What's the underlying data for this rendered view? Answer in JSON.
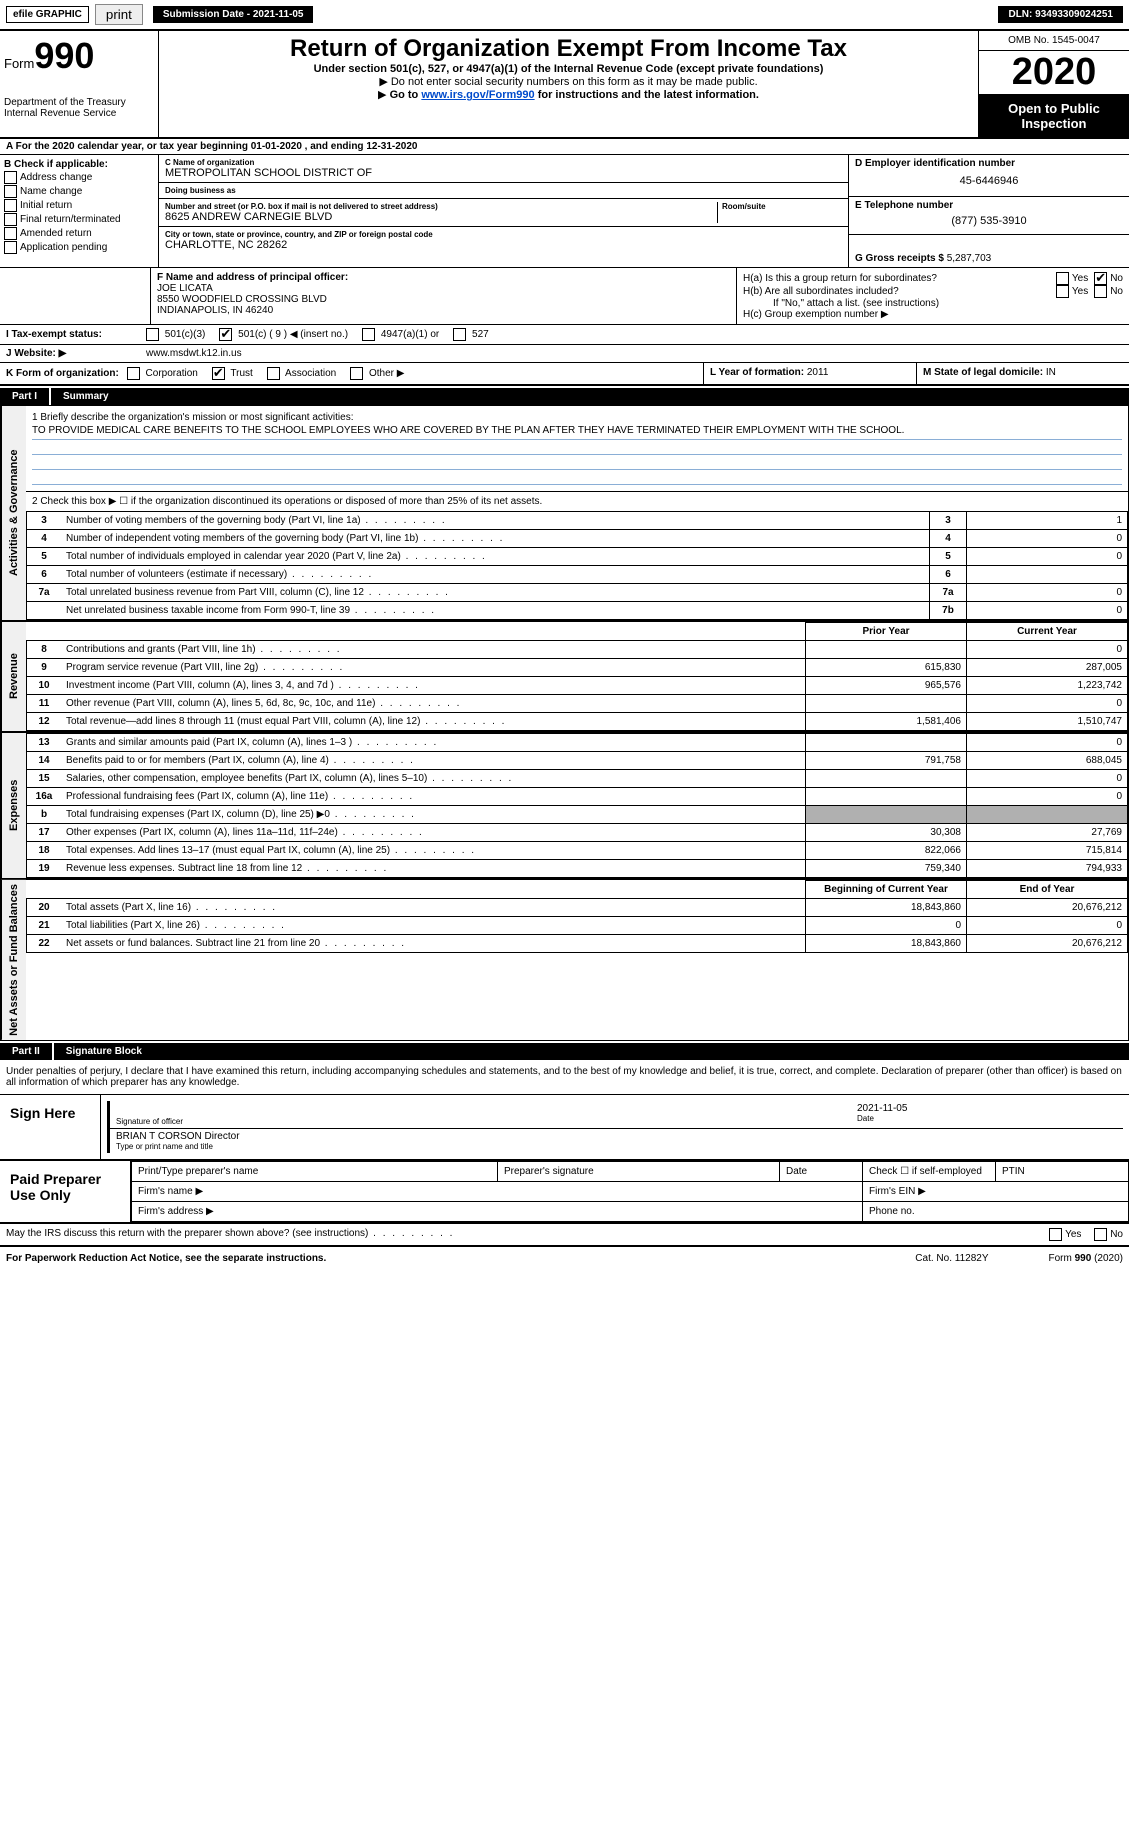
{
  "topbar": {
    "efile": "efile GRAPHIC",
    "print": "print",
    "submission_label": "Submission Date - 2021-11-05",
    "dln": "DLN: 93493309024251"
  },
  "header": {
    "form_prefix": "Form",
    "form_number": "990",
    "dept": "Department of the Treasury\nInternal Revenue Service",
    "title": "Return of Organization Exempt From Income Tax",
    "subtitle": "Under section 501(c), 527, or 4947(a)(1) of the Internal Revenue Code (except private foundations)",
    "note1": "Do not enter social security numbers on this form as it may be made public.",
    "note2_prefix": "Go to ",
    "note2_link": "www.irs.gov/Form990",
    "note2_suffix": " for instructions and the latest information.",
    "omb": "OMB No. 1545-0047",
    "year": "2020",
    "open": "Open to Public Inspection"
  },
  "line_a": "A For the 2020 calendar year, or tax year beginning 01-01-2020   , and ending 12-31-2020",
  "section_b": {
    "hd": "B Check if applicable:",
    "items": [
      "Address change",
      "Name change",
      "Initial return",
      "Final return/terminated",
      "Amended return",
      "Application pending"
    ]
  },
  "section_c": {
    "name_lbl": "C Name of organization",
    "name": "METROPOLITAN SCHOOL DISTRICT OF",
    "dba_lbl": "Doing business as",
    "dba": "",
    "addr_lbl": "Number and street (or P.O. box if mail is not delivered to street address)",
    "room_lbl": "Room/suite",
    "addr": "8625 ANDREW CARNEGIE BLVD",
    "city_lbl": "City or town, state or province, country, and ZIP or foreign postal code",
    "city": "CHARLOTTE, NC  28262"
  },
  "section_d": {
    "ein_lbl": "D Employer identification number",
    "ein": "45-6446946",
    "tel_lbl": "E Telephone number",
    "tel": "(877) 535-3910",
    "gross_lbl": "G Gross receipts $",
    "gross": "5,287,703"
  },
  "section_f": {
    "lbl": "F Name and address of principal officer:",
    "name": "JOE LICATA",
    "addr1": "8550 WOODFIELD CROSSING BLVD",
    "addr2": "INDIANAPOLIS, IN  46240"
  },
  "section_h": {
    "ha": "H(a)  Is this a group return for subordinates?",
    "hb": "H(b)  Are all subordinates included?",
    "hb_note": "If \"No,\" attach a list. (see instructions)",
    "hc": "H(c)  Group exemption number ▶",
    "yes": "Yes",
    "no": "No"
  },
  "line_i": {
    "lbl": "I   Tax-exempt status:",
    "opts": [
      "501(c)(3)",
      "501(c) ( 9 ) ◀ (insert no.)",
      "4947(a)(1) or",
      "527"
    ],
    "checked_index": 1
  },
  "line_j": {
    "lbl": "J   Website: ▶",
    "val": "www.msdwt.k12.in.us"
  },
  "line_k": {
    "lbl": "K Form of organization:",
    "opts": [
      "Corporation",
      "Trust",
      "Association",
      "Other ▶"
    ],
    "checked_index": 1,
    "l_lbl": "L Year of formation:",
    "l_val": "2011",
    "m_lbl": "M State of legal domicile:",
    "m_val": "IN"
  },
  "part1": {
    "part": "Part I",
    "title": "Summary",
    "side_labels": [
      "Activities & Governance",
      "Revenue",
      "Expenses",
      "Net Assets or Fund Balances"
    ],
    "line1_lbl": "1  Briefly describe the organization's mission or most significant activities:",
    "line1_txt": "TO PROVIDE MEDICAL CARE BENEFITS TO THE SCHOOL EMPLOYEES WHO ARE COVERED BY THE PLAN AFTER THEY HAVE TERMINATED THEIR EMPLOYMENT WITH THE SCHOOL.",
    "line2": "2     Check this box ▶ ☐  if the organization discontinued its operations or disposed of more than 25% of its net assets.",
    "gov_rows": [
      {
        "n": "3",
        "d": "Number of voting members of the governing body (Part VI, line 1a)",
        "b": "3",
        "v": "1"
      },
      {
        "n": "4",
        "d": "Number of independent voting members of the governing body (Part VI, line 1b)",
        "b": "4",
        "v": "0"
      },
      {
        "n": "5",
        "d": "Total number of individuals employed in calendar year 2020 (Part V, line 2a)",
        "b": "5",
        "v": "0"
      },
      {
        "n": "6",
        "d": "Total number of volunteers (estimate if necessary)",
        "b": "6",
        "v": ""
      },
      {
        "n": "7a",
        "d": "Total unrelated business revenue from Part VIII, column (C), line 12",
        "b": "7a",
        "v": "0"
      },
      {
        "n": "",
        "d": "Net unrelated business taxable income from Form 990-T, line 39",
        "b": "7b",
        "v": "0"
      }
    ],
    "col_prior": "Prior Year",
    "col_current": "Current Year",
    "rev_rows": [
      {
        "n": "8",
        "d": "Contributions and grants (Part VIII, line 1h)",
        "p": "",
        "c": "0"
      },
      {
        "n": "9",
        "d": "Program service revenue (Part VIII, line 2g)",
        "p": "615,830",
        "c": "287,005"
      },
      {
        "n": "10",
        "d": "Investment income (Part VIII, column (A), lines 3, 4, and 7d )",
        "p": "965,576",
        "c": "1,223,742"
      },
      {
        "n": "11",
        "d": "Other revenue (Part VIII, column (A), lines 5, 6d, 8c, 9c, 10c, and 11e)",
        "p": "",
        "c": "0"
      },
      {
        "n": "12",
        "d": "Total revenue—add lines 8 through 11 (must equal Part VIII, column (A), line 12)",
        "p": "1,581,406",
        "c": "1,510,747"
      }
    ],
    "exp_rows": [
      {
        "n": "13",
        "d": "Grants and similar amounts paid (Part IX, column (A), lines 1–3 )",
        "p": "",
        "c": "0"
      },
      {
        "n": "14",
        "d": "Benefits paid to or for members (Part IX, column (A), line 4)",
        "p": "791,758",
        "c": "688,045"
      },
      {
        "n": "15",
        "d": "Salaries, other compensation, employee benefits (Part IX, column (A), lines 5–10)",
        "p": "",
        "c": "0"
      },
      {
        "n": "16a",
        "d": "Professional fundraising fees (Part IX, column (A), line 11e)",
        "p": "",
        "c": "0"
      },
      {
        "n": "b",
        "d": "Total fundraising expenses (Part IX, column (D), line 25) ▶0",
        "p": "SHADE",
        "c": "SHADE"
      },
      {
        "n": "17",
        "d": "Other expenses (Part IX, column (A), lines 11a–11d, 11f–24e)",
        "p": "30,308",
        "c": "27,769"
      },
      {
        "n": "18",
        "d": "Total expenses. Add lines 13–17 (must equal Part IX, column (A), line 25)",
        "p": "822,066",
        "c": "715,814"
      },
      {
        "n": "19",
        "d": "Revenue less expenses. Subtract line 18 from line 12",
        "p": "759,340",
        "c": "794,933"
      }
    ],
    "col_begin": "Beginning of Current Year",
    "col_end": "End of Year",
    "net_rows": [
      {
        "n": "20",
        "d": "Total assets (Part X, line 16)",
        "p": "18,843,860",
        "c": "20,676,212"
      },
      {
        "n": "21",
        "d": "Total liabilities (Part X, line 26)",
        "p": "0",
        "c": "0"
      },
      {
        "n": "22",
        "d": "Net assets or fund balances. Subtract line 21 from line 20",
        "p": "18,843,860",
        "c": "20,676,212"
      }
    ]
  },
  "part2": {
    "part": "Part II",
    "title": "Signature Block",
    "intro": "Under penalties of perjury, I declare that I have examined this return, including accompanying schedules and statements, and to the best of my knowledge and belief, it is true, correct, and complete. Declaration of preparer (other than officer) is based on all information of which preparer has any knowledge.",
    "sign_here": "Sign Here",
    "sig_officer": "Signature of officer",
    "sig_date_val": "2021-11-05",
    "sig_date": "Date",
    "sig_name": "BRIAN T CORSON  Director",
    "sig_name_lbl": "Type or print name and title",
    "paid": "Paid Preparer Use Only",
    "pt_name": "Print/Type preparer's name",
    "pt_sig": "Preparer's signature",
    "pt_date": "Date",
    "pt_check": "Check ☐ if self-employed",
    "pt_ptin": "PTIN",
    "firm_name": "Firm's name   ▶",
    "firm_ein": "Firm's EIN ▶",
    "firm_addr": "Firm's address ▶",
    "firm_phone": "Phone no.",
    "discuss": "May the IRS discuss this return with the preparer shown above? (see instructions)",
    "yes": "Yes",
    "no": "No"
  },
  "footer": {
    "paperwork": "For Paperwork Reduction Act Notice, see the separate instructions.",
    "cat": "Cat. No. 11282Y",
    "form": "Form 990 (2020)"
  },
  "colors": {
    "link": "#004bcc",
    "rule": "#8aaed6",
    "shade": "#b0b0b0"
  }
}
